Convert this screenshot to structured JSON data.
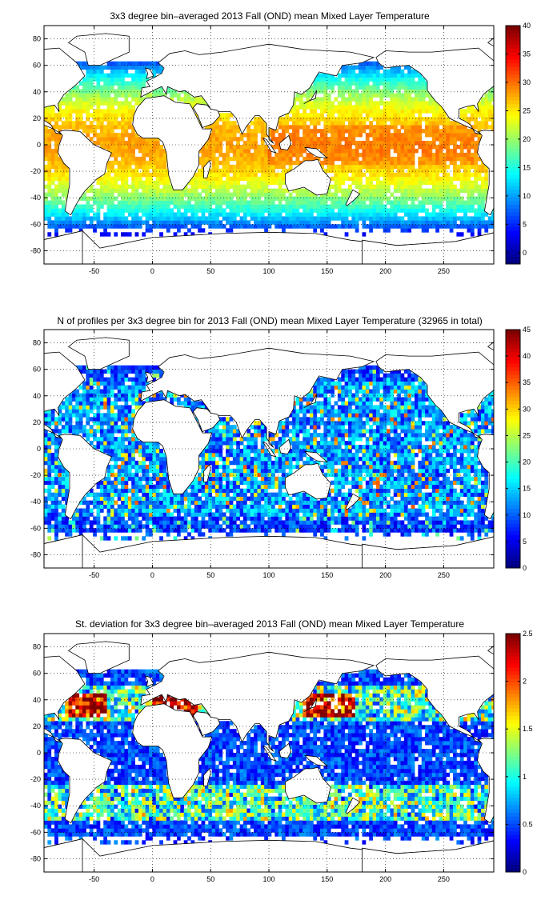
{
  "chart_data": [
    {
      "type": "heatmap",
      "title": "3x3 degree bin–averaged 2013 Fall (OND) mean Mixed Layer Temperature",
      "xlim": [
        -93,
        293
      ],
      "ylim": [
        -90,
        90
      ],
      "xticks": [
        -50,
        0,
        50,
        100,
        150,
        200,
        250
      ],
      "yticks": [
        80,
        60,
        40,
        20,
        0,
        -20,
        -40,
        -60,
        -80
      ],
      "grid": true,
      "colorbar": {
        "range": [
          -2,
          40
        ],
        "ticks": [
          0,
          5,
          10,
          15,
          20,
          25,
          30,
          35,
          40
        ],
        "colormap": "jet"
      },
      "bin_size_deg": 3,
      "field": "temperature"
    },
    {
      "type": "heatmap",
      "title": "N of profiles per 3x3 degree bin for 2013 Fall (OND) mean Mixed Layer Temperature  (32965 in total)",
      "xlim": [
        -93,
        293
      ],
      "ylim": [
        -90,
        90
      ],
      "xticks": [
        -50,
        0,
        50,
        100,
        150,
        200,
        250
      ],
      "yticks": [
        80,
        60,
        40,
        20,
        0,
        -20,
        -40,
        -60,
        -80
      ],
      "grid": true,
      "colorbar": {
        "range": [
          0,
          45
        ],
        "ticks": [
          0,
          5,
          10,
          15,
          20,
          25,
          30,
          35,
          40,
          45
        ],
        "colormap": "jet"
      },
      "bin_size_deg": 3,
      "field": "count",
      "total_profiles": 32965
    },
    {
      "type": "heatmap",
      "title": "St. deviation for 3x3 degree bin–averaged 2013 Fall (OND) mean Mixed Layer Temperature",
      "xlim": [
        -93,
        293
      ],
      "ylim": [
        -90,
        90
      ],
      "xticks": [
        -50,
        0,
        50,
        100,
        150,
        200,
        250
      ],
      "yticks": [
        80,
        60,
        40,
        20,
        0,
        -20,
        -40,
        -60,
        -80
      ],
      "grid": true,
      "colorbar": {
        "range": [
          0,
          2.5
        ],
        "ticks": [
          0,
          0.5,
          1,
          1.5,
          2,
          2.5
        ],
        "colormap": "jet"
      },
      "bin_size_deg": 3,
      "field": "stddev"
    }
  ]
}
